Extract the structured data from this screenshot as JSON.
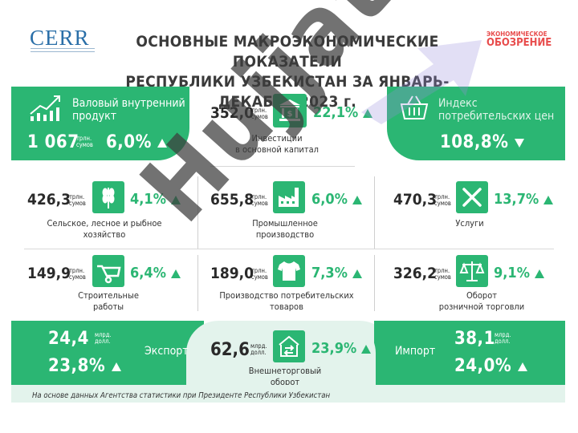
{
  "header": {
    "logo_left": "CERR",
    "title_line1": "ОСНОВНЫЕ МАКРОЭКОНОМИЧЕСКИЕ ПОКАЗАТЕЛИ",
    "title_line2": "РЕСПУБЛИКИ УЗБЕКИСТАН ЗА ЯНВАРЬ-ДЕКАБРЬ 2023 г.",
    "logo_right_line1": "ЭКОНОМИЧЕСКОЕ",
    "logo_right_line2": "ОБОЗРЕНИЕ"
  },
  "gdp": {
    "label_line1": "Валовый внутренний",
    "label_line2": "продукт",
    "value": "1 067",
    "unit_line1": "трлн.",
    "unit_line2": "сумов",
    "pct": "6,0%",
    "trend": "up",
    "icon": "chart-icon"
  },
  "investment": {
    "value": "352,0",
    "unit_line1": "трлн.",
    "unit_line2": "сумов",
    "pct": "22,1%",
    "trend": "up",
    "label_line1": "Инвестиции",
    "label_line2": "в основной капитал",
    "icon": "bank-icon"
  },
  "cpi": {
    "label_line1": "Индекс",
    "label_line2": "потребительских цен",
    "value": "108,8%",
    "trend": "down",
    "icon": "basket-icon"
  },
  "agriculture": {
    "value": "426,3",
    "unit_line1": "трлн.",
    "unit_line2": "сумов",
    "pct": "4,1%",
    "trend": "up",
    "label_line1": "Сельское, лесное и рыбное",
    "label_line2": "хозяйство",
    "icon": "wheat-icon"
  },
  "industry": {
    "value": "655,8",
    "unit_line1": "трлн.",
    "unit_line2": "сумов",
    "pct": "6,0%",
    "trend": "up",
    "label_line1": "Промышленное",
    "label_line2": "производство",
    "icon": "factory-icon"
  },
  "services": {
    "value": "470,3",
    "unit_line1": "трлн.",
    "unit_line2": "сумов",
    "pct": "13,7%",
    "trend": "up",
    "label_line1": "Услуги",
    "label_line2": "",
    "icon": "tools-icon"
  },
  "construction": {
    "value": "149,9",
    "unit_line1": "трлн.",
    "unit_line2": "сумов",
    "pct": "6,4%",
    "trend": "up",
    "label_line1": "Строительные",
    "label_line2": "работы",
    "icon": "wheelbarrow-icon"
  },
  "consumer_goods": {
    "value": "189,0",
    "unit_line1": "трлн.",
    "unit_line2": "сумов",
    "pct": "7,3%",
    "trend": "up",
    "label_line1": "Производство потребительских",
    "label_line2": "товаров",
    "icon": "shirt-icon"
  },
  "retail": {
    "value": "326,2",
    "unit_line1": "трлн.",
    "unit_line2": "сумов",
    "pct": "9,1%",
    "trend": "up",
    "label_line1": "Оборот",
    "label_line2": "розничной торговли",
    "icon": "scales-icon"
  },
  "export": {
    "value": "24,4",
    "unit_line1": "млрд.",
    "unit_line2": "долл.",
    "pct": "23,8%",
    "trend": "up",
    "label": "Экспорт"
  },
  "trade": {
    "value": "62,6",
    "unit_line1": "млрд.",
    "unit_line2": "долл.",
    "pct": "23,9%",
    "trend": "up",
    "label_line1": "Внешнеторговый",
    "label_line2": "оборот",
    "icon": "exchange-icon"
  },
  "import": {
    "value": "38,1",
    "unit_line1": "млрд.",
    "unit_line2": "долл.",
    "pct": "24,0%",
    "trend": "up",
    "label": "Импорт"
  },
  "source": "На основе данных Агентства статистики при Президенте Республики Узбекистан",
  "watermark": "Hujjat",
  "colors": {
    "accent": "#2bb673",
    "accent_light": "#e3f3ec",
    "brand_red": "#e84c4c",
    "cerr_blue": "#2a6fa8"
  }
}
